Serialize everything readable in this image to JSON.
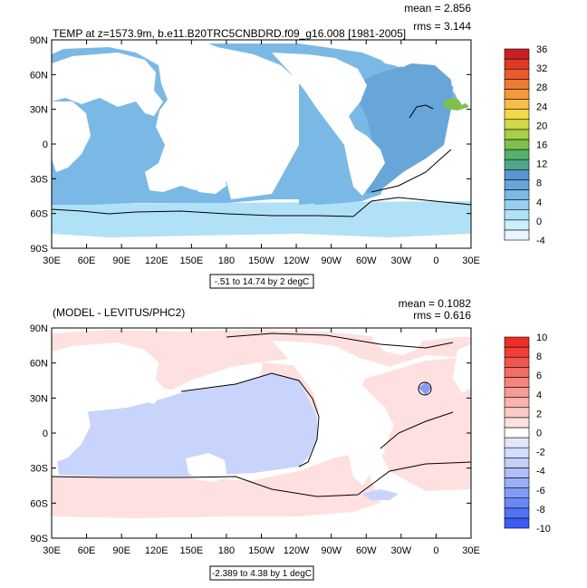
{
  "chart_data": [
    {
      "type": "heatmap",
      "title": "TEMP at z=1573.9m, b.e11.B20TRC5CNBDRD.f09_g16.008 [1981-2005]",
      "stats": {
        "mean": "mean = 2.856",
        "rms": "rms = 3.144"
      },
      "range_label": "-.51 to 14.74 by 2 degC",
      "lon_ticks": [
        "30E",
        "60E",
        "90E",
        "120E",
        "150E",
        "180",
        "150W",
        "120W",
        "90W",
        "60W",
        "30W",
        "0",
        "30E"
      ],
      "lat_ticks": [
        "90N",
        "60N",
        "30N",
        "0",
        "30S",
        "60S",
        "90S"
      ],
      "colorbar": {
        "levels": [
          "-4",
          "0",
          "4",
          "8",
          "12",
          "16",
          "20",
          "24",
          "28",
          "32",
          "36"
        ],
        "colors": [
          "#e8f6fd",
          "#cdeefb",
          "#b0e1f7",
          "#96cff0",
          "#7ab9e5",
          "#68a6d9",
          "#5a95cf",
          "#4fa58a",
          "#55b068",
          "#7ebf4e",
          "#a8cf46",
          "#cfd94a",
          "#f2d94a",
          "#f7be45",
          "#f49a3c",
          "#ee7a34",
          "#ea5a2d",
          "#df3a26",
          "#c82022"
        ]
      }
    },
    {
      "type": "heatmap",
      "title": "(MODEL - LEVITUS/PHC2)",
      "stats": {
        "mean": "mean = 0.1082",
        "rms": "rms = 0.616"
      },
      "range_label": "-2.389 to 4.38 by 1 degC",
      "lon_ticks": [
        "30E",
        "60E",
        "90E",
        "120E",
        "150E",
        "180",
        "150W",
        "120W",
        "90W",
        "60W",
        "30W",
        "0",
        "30E"
      ],
      "lat_ticks": [
        "90N",
        "60N",
        "30N",
        "0",
        "30S",
        "60S",
        "90S"
      ],
      "colorbar": {
        "levels": [
          "-10",
          "-8",
          "-6",
          "-4",
          "-2",
          "0",
          "2",
          "4",
          "6",
          "8",
          "10"
        ],
        "colors": [
          "#3a5cf5",
          "#5272f5",
          "#6a87f6",
          "#829bf7",
          "#98aef8",
          "#aebff9",
          "#c2cffa",
          "#d4ddfb",
          "#e2e8fc",
          "#ffffff",
          "#fde0df",
          "#fbc9c7",
          "#f9b2ae",
          "#f79b96",
          "#f5847e",
          "#f36d66",
          "#f1564e",
          "#ef3f36",
          "#ed2e24"
        ]
      }
    }
  ]
}
